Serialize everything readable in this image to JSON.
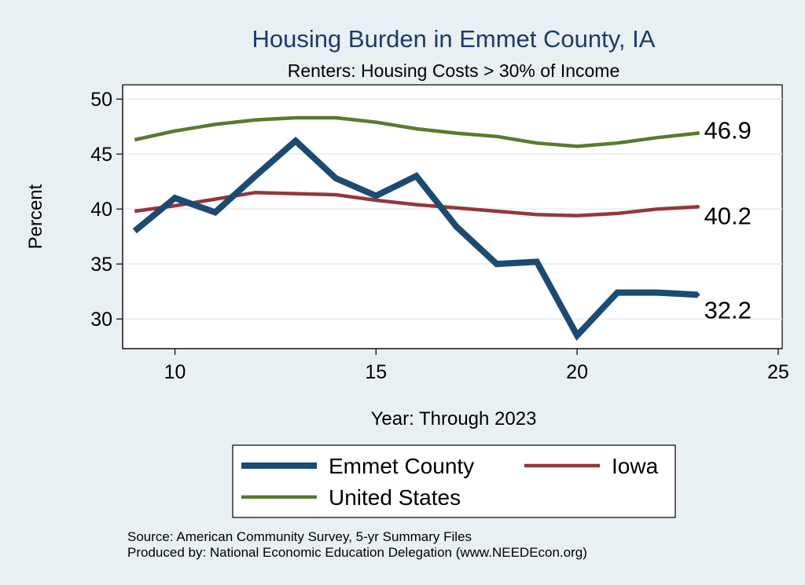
{
  "chart_data": {
    "type": "line",
    "title": "Housing Burden in Emmet County, IA",
    "subtitle": "Renters: Housing Costs > 30% of Income",
    "xlabel": "Year: Through 2023",
    "ylabel": "Percent",
    "xlim": [
      8.7,
      25.1
    ],
    "ylim": [
      27.3,
      51.3
    ],
    "xticks": [
      "10",
      "15",
      "20",
      "25"
    ],
    "yticks": [
      "30",
      "35",
      "40",
      "45",
      "50"
    ],
    "xtick_values": [
      10,
      15,
      20,
      25
    ],
    "ytick_values": [
      30,
      35,
      40,
      45,
      50
    ],
    "grid": true,
    "series": [
      {
        "name": "Emmet County",
        "color": "#1b4a72",
        "x": [
          9,
          10,
          11,
          12,
          13,
          14,
          15,
          16,
          17,
          18,
          19,
          20,
          21,
          22,
          23
        ],
        "values": [
          38.0,
          41.0,
          39.7,
          43.0,
          46.2,
          42.8,
          41.2,
          43.0,
          38.4,
          35.0,
          35.2,
          28.5,
          32.4,
          32.4,
          32.2
        ],
        "end_label": "32.2"
      },
      {
        "name": "Iowa",
        "color": "#93373c",
        "x": [
          9,
          10,
          11,
          12,
          13,
          14,
          15,
          16,
          17,
          18,
          19,
          20,
          21,
          22,
          23
        ],
        "values": [
          39.8,
          40.3,
          40.9,
          41.5,
          41.4,
          41.3,
          40.8,
          40.4,
          40.1,
          39.8,
          39.5,
          39.4,
          39.6,
          40.0,
          40.2
        ],
        "end_label": "40.2"
      },
      {
        "name": "United States",
        "color": "#5a7a2e",
        "x": [
          9,
          10,
          11,
          12,
          13,
          14,
          15,
          16,
          17,
          18,
          19,
          20,
          21,
          22,
          23
        ],
        "values": [
          46.3,
          47.1,
          47.7,
          48.1,
          48.3,
          48.3,
          47.9,
          47.3,
          46.9,
          46.6,
          46.0,
          45.7,
          46.0,
          46.5,
          46.9
        ],
        "end_label": "46.9"
      }
    ],
    "legend": [
      "Emmet County",
      "Iowa",
      "United States"
    ],
    "legend_position": "bottom"
  },
  "source": {
    "line1": "Source: American Community Survey, 5-yr Summary Files",
    "line2": "Produced by: National Economic Education Delegation (www.NEEDEcon.org)"
  }
}
